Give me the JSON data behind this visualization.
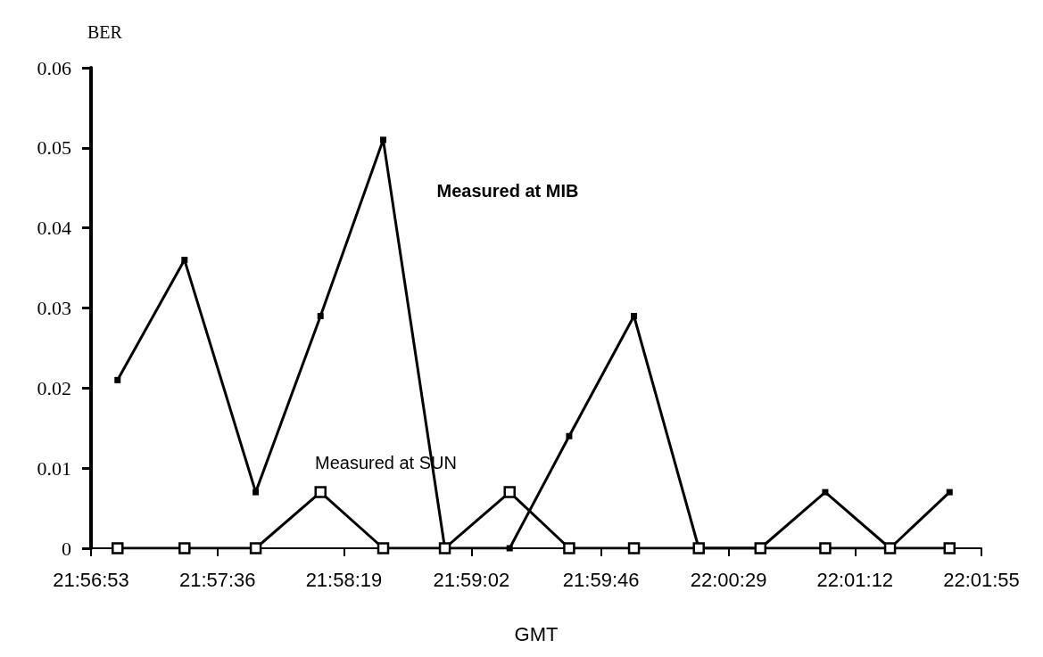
{
  "chart_data": {
    "type": "line",
    "xlabel": "GMT",
    "ylabel": "BER",
    "x": [
      21.9506,
      21.9569,
      21.9636,
      21.9697,
      21.9756,
      21.9814,
      21.9875,
      21.9931,
      21.9992,
      22.0053,
      22.0111,
      22.0172,
      22.0233,
      22.0289
    ],
    "series": [
      {
        "name": "Measured at MIB",
        "color": "#000000",
        "values": [
          0.021,
          0.036,
          0.007,
          0.029,
          0.051,
          0,
          0,
          0.014,
          0.029,
          0,
          0,
          0.007,
          0,
          0.007
        ]
      },
      {
        "name": "Measured at SUN",
        "color": "#000000",
        "values": [
          0,
          0,
          0,
          0.007,
          0,
          0,
          0.007,
          0,
          0,
          0,
          0,
          0,
          0,
          0
        ]
      }
    ],
    "xlim": [
      21.9481,
      22.0319
    ],
    "xticks": [
      {
        "value": 21.9481,
        "label": "21:56:53"
      },
      {
        "value": 21.96,
        "label": "21:57:36"
      },
      {
        "value": 21.9719,
        "label": "21:58:19"
      },
      {
        "value": 21.9839,
        "label": "21:59:02"
      },
      {
        "value": 21.9961,
        "label": "21:59:46"
      },
      {
        "value": 22.0081,
        "label": "22:00:29"
      },
      {
        "value": 22.02,
        "label": "22:01:12"
      },
      {
        "value": 22.0319,
        "label": "22:01:55"
      }
    ],
    "ylim": [
      0,
      0.06
    ],
    "yticks": [
      0,
      0.01,
      0.02,
      0.03,
      0.04,
      0.05,
      0.06
    ],
    "grid": false,
    "marker": "square",
    "line_style": "solid"
  }
}
